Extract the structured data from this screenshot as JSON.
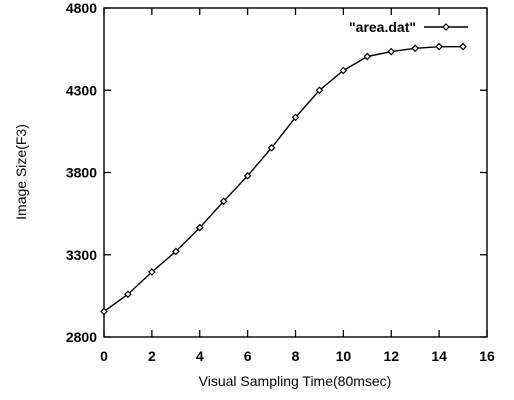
{
  "chart_data": {
    "type": "line",
    "title": "",
    "xlabel": "Visual Sampling Time(80msec)",
    "ylabel": "Image Size(F3)",
    "xlim": [
      0,
      16
    ],
    "ylim": [
      2800,
      4800
    ],
    "x_ticks": [
      0,
      2,
      4,
      6,
      8,
      10,
      12,
      14,
      16
    ],
    "y_ticks": [
      2800,
      3300,
      3800,
      4300,
      4800
    ],
    "grid": false,
    "legend": {
      "position": "top-right"
    },
    "series": [
      {
        "name": "\"area.dat\"",
        "marker": "diamond",
        "color": "#000000",
        "x": [
          0,
          1,
          2,
          3,
          4,
          5,
          6,
          7,
          8,
          9,
          10,
          11,
          12,
          13,
          14,
          15
        ],
        "y": [
          2955,
          3060,
          3195,
          3320,
          3465,
          3625,
          3780,
          3950,
          4135,
          4300,
          4420,
          4505,
          4535,
          4555,
          4565,
          4565
        ]
      }
    ]
  }
}
